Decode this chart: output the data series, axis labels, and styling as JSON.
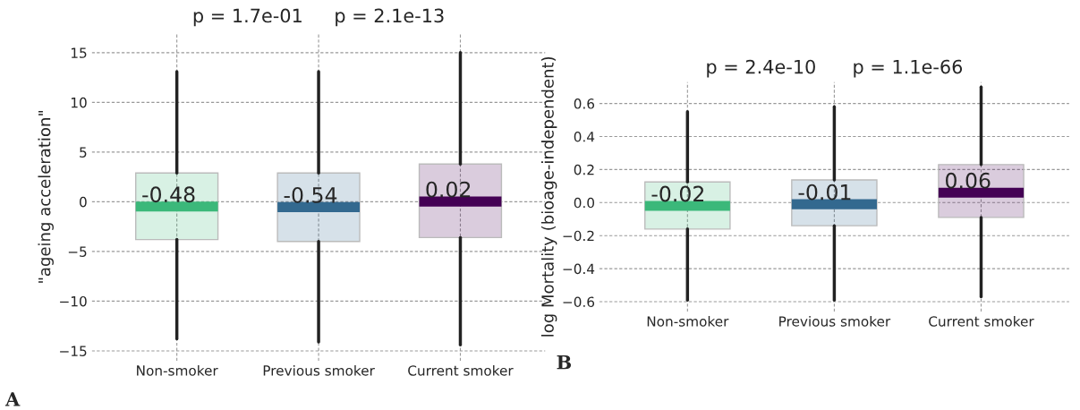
{
  "chart_data": [
    {
      "type": "box",
      "ylabel": "\"ageing acceleration\"",
      "categories": [
        "Non-smoker",
        "Previous smoker",
        "Current smoker"
      ],
      "colors": [
        "#3bb87a",
        "#33698f",
        "#440154"
      ],
      "boxes": [
        {
          "low": -13.8,
          "q1": -3.8,
          "median": -0.48,
          "q3": 2.9,
          "high": 13.1
        },
        {
          "low": -14.1,
          "q1": -4.0,
          "median": -0.54,
          "q3": 2.9,
          "high": 13.1
        },
        {
          "low": -14.4,
          "q1": -3.6,
          "median": 0.02,
          "q3": 3.8,
          "high": 15.0
        }
      ],
      "ylim": [
        -16,
        17
      ],
      "yticks": [
        {
          "value": -15,
          "label": "−15"
        },
        {
          "value": -10,
          "label": "−10"
        },
        {
          "value": -5,
          "label": "−5"
        },
        0,
        5,
        10,
        15
      ],
      "grid": true,
      "annotations": [
        "p = 1.7e-01",
        "p = 2.1e-13",
        "A",
        {
          "text": "-0.48",
          "x": "Non-smoker",
          "y": -0.48
        },
        {
          "text": "-0.54",
          "x": "Previous smoker",
          "y": -0.54
        },
        {
          "text": "0.02",
          "x": "Current smoker",
          "y": 0.02
        }
      ]
    },
    {
      "type": "box",
      "ylabel": "log Mortality (bioage-independent)",
      "categories": [
        "Non-smoker",
        "Previous smoker",
        "Current smoker"
      ],
      "colors": [
        "#3bb87a",
        "#33698f",
        "#440154"
      ],
      "boxes": [
        {
          "low": -0.59,
          "q1": -0.16,
          "median": -0.02,
          "q3": 0.125,
          "high": 0.55
        },
        {
          "low": -0.59,
          "q1": -0.14,
          "median": -0.01,
          "q3": 0.137,
          "high": 0.58
        },
        {
          "low": -0.57,
          "q1": -0.09,
          "median": 0.06,
          "q3": 0.23,
          "high": 0.7
        }
      ],
      "ylim": [
        -0.66,
        0.73
      ],
      "yticks": [
        {
          "value": -0.6,
          "label": "−0.6"
        },
        {
          "value": -0.4,
          "label": "−0.4"
        },
        {
          "value": -0.2,
          "label": "−0.2"
        },
        {
          "value": 0,
          "label": "0.0"
        },
        0.2,
        0.4,
        0.6
      ],
      "grid": true,
      "annotations": [
        "p = 2.4e-10",
        "p = 1.1e-66",
        "B",
        {
          "text": "-0.02",
          "x": "Non-smoker",
          "y": -0.02
        },
        {
          "text": "-0.01",
          "x": "Previous smoker",
          "y": -0.01
        },
        {
          "text": "0.06",
          "x": "Current smoker",
          "y": 0.06
        }
      ]
    }
  ]
}
